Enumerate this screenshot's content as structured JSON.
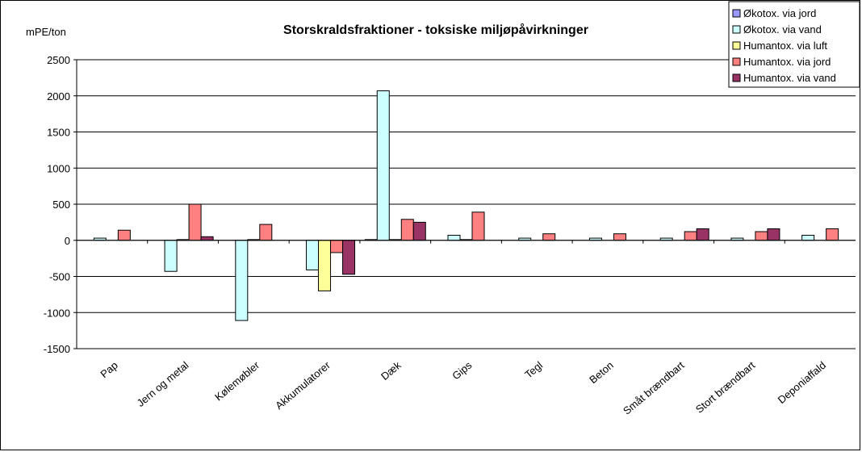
{
  "chart_data": {
    "type": "bar",
    "title": "Storskraldsfraktioner - toksiske miljøpåvirkninger",
    "y_label": "mPE/ton",
    "categories": [
      "Pap",
      "Jern og metal",
      "Kølemøbler",
      "Akkumulatorer",
      "Dæk",
      "Gips",
      "Tegl",
      "Beton",
      "Småt brændbart",
      "Stort brændbart",
      "Deponiaffald"
    ],
    "series": [
      {
        "name": "Økotox. via jord",
        "color": "#9999ff",
        "values": [
          0,
          0,
          0,
          0,
          10,
          0,
          0,
          0,
          0,
          0,
          0
        ]
      },
      {
        "name": "Økotox. via vand",
        "color": "#ccffff",
        "values": [
          30,
          -430,
          -1110,
          -410,
          2070,
          70,
          30,
          30,
          30,
          30,
          70
        ]
      },
      {
        "name": "Humantox. via luft",
        "color": "#ffff99",
        "values": [
          0,
          10,
          10,
          -700,
          10,
          10,
          0,
          0,
          0,
          0,
          0
        ]
      },
      {
        "name": "Humantox. via jord",
        "color": "#ff8080",
        "values": [
          140,
          500,
          220,
          -170,
          290,
          390,
          90,
          90,
          120,
          120,
          160
        ]
      },
      {
        "name": "Humantox. via vand",
        "color": "#993366",
        "values": [
          0,
          50,
          0,
          -470,
          250,
          0,
          0,
          0,
          160,
          160,
          0
        ]
      }
    ],
    "ylim": [
      -1500,
      2500
    ],
    "yticks": [
      -1500,
      -1000,
      -500,
      0,
      500,
      1000,
      1500,
      2000,
      2500
    ],
    "grid": true,
    "legend": "top-right"
  }
}
